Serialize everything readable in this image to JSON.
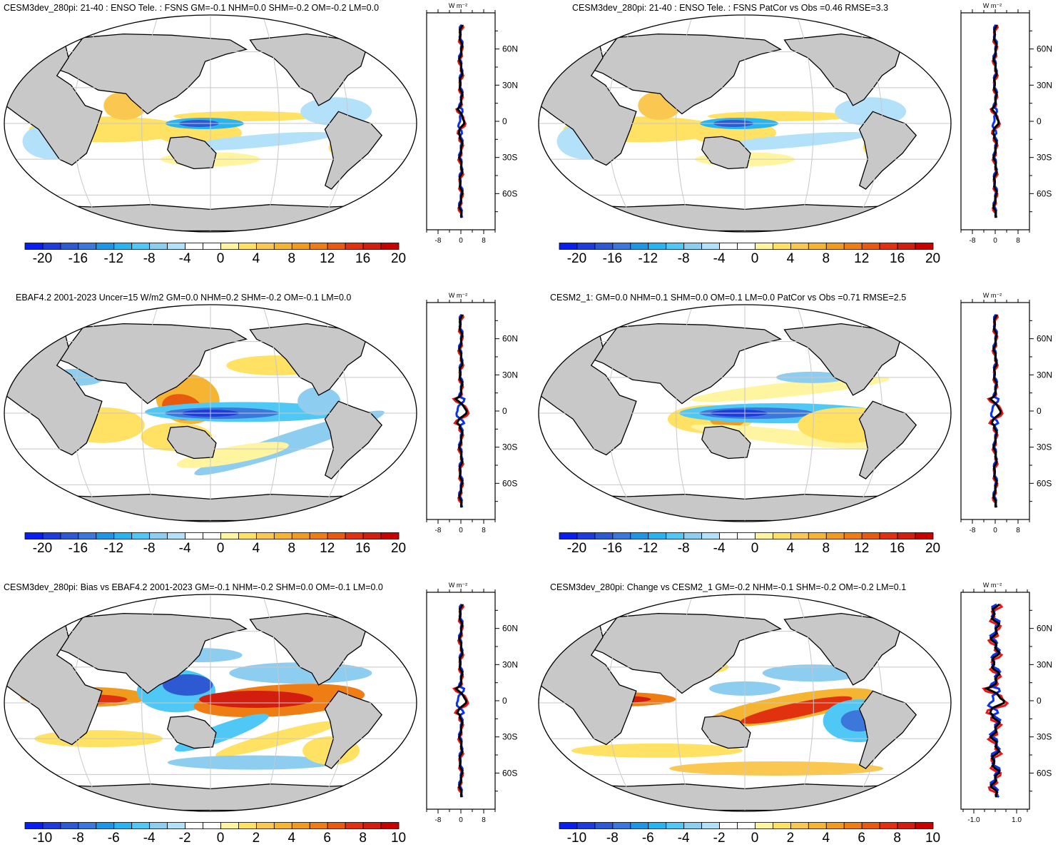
{
  "figure": {
    "profile_unit": "W m⁻²",
    "lat_labels": [
      "60N",
      "30N",
      "0",
      "30S",
      "60S"
    ],
    "lat_values": [
      60,
      30,
      0,
      -30,
      -60
    ]
  },
  "panels": [
    {
      "id": "p1",
      "title": "CESM3dev_280pi: 21-40 : ENSO Tele. : FSNS GM=-0.1 NHM=0.0 SHM=-0.2 OM=-0.2 LM=0.0",
      "colorbar_labels": [
        "-20",
        "-16",
        "-12",
        "-8",
        "-4",
        "0",
        "4",
        "8",
        "12",
        "16",
        "20"
      ],
      "profile_ticks": [
        "-8",
        "0",
        "8"
      ]
    },
    {
      "id": "p2",
      "title": "CESM3dev_280pi: 21-40 : ENSO Tele. : FSNS PatCor vs Obs =0.46 RMSE=3.3",
      "colorbar_labels": [
        "-20",
        "-16",
        "-12",
        "-8",
        "-4",
        "0",
        "4",
        "8",
        "12",
        "16",
        "20"
      ],
      "profile_ticks": [
        "-8",
        "0",
        "8"
      ]
    },
    {
      "id": "p3",
      "title": "EBAF4.2 2001-2023 Uncer=15 W/m2 GM=0.0 NHM=0.2 SHM=-0.2 OM=-0.1 LM=0.0",
      "colorbar_labels": [
        "-20",
        "-16",
        "-12",
        "-8",
        "-4",
        "0",
        "4",
        "8",
        "12",
        "16",
        "20"
      ],
      "profile_ticks": [
        "-8",
        "0",
        "8"
      ]
    },
    {
      "id": "p4",
      "title": "CESM2_1: GM=0.0 NHM=0.1 SHM=0.0 OM=0.1 LM=0.0 PatCor vs Obs =0.71 RMSE=2.5",
      "colorbar_labels": [
        "-20",
        "-16",
        "-12",
        "-8",
        "-4",
        "0",
        "4",
        "8",
        "12",
        "16",
        "20"
      ],
      "profile_ticks": [
        "-8",
        "0",
        "8"
      ]
    },
    {
      "id": "p5",
      "title": "CESM3dev_280pi: Bias vs EBAF4.2 2001-2023 GM=-0.1 NHM=-0.2 SHM=0.0 OM=-0.1 LM=0.0",
      "colorbar_labels": [
        "-10",
        "-8",
        "-6",
        "-4",
        "-2",
        "0",
        "2",
        "4",
        "6",
        "8",
        "10"
      ],
      "profile_ticks": [
        "-8",
        "0",
        "8"
      ]
    },
    {
      "id": "p6",
      "title": "CESM3dev_280pi: Change vs CESM2_1 GM=-0.2 NHM=-0.1 SHM=-0.2 OM=-0.2 LM=0.1",
      "colorbar_labels": [
        "-10",
        "-8",
        "-6",
        "-4",
        "-2",
        "0",
        "2",
        "4",
        "6",
        "8",
        "10"
      ],
      "profile_ticks": [
        "-1.0",
        "1.0"
      ]
    }
  ],
  "colors": {
    "colorbar": [
      "#0a1ef0",
      "#1e3cdc",
      "#2d5ad2",
      "#3c78dc",
      "#1e96e6",
      "#28b4f0",
      "#50c8f5",
      "#8ccdf0",
      "#b4e1fa",
      "#ffffff",
      "#ffffff",
      "#fff5a0",
      "#ffe164",
      "#fac850",
      "#f5b432",
      "#f09b1e",
      "#ee7d14",
      "#e85a0f",
      "#e1320f",
      "#d21e0f",
      "#c80000"
    ],
    "land": "#c8c8c8",
    "grid": "#c8c8c8",
    "line_model": "#000000",
    "line_obs": "#0a32f0",
    "line_other": "#f01414"
  },
  "chart_data": [
    {
      "type": "heatmap",
      "panel": "p1",
      "subject": "ENSO teleconnection FSNS regression map",
      "projection": "Robinson",
      "units": "W m-2",
      "levels": [
        -20,
        20
      ],
      "features": [
        {
          "region": "Western equatorial Pacific",
          "value": -14
        },
        {
          "region": "Maritime continent / Indian Ocean",
          "value": 4
        },
        {
          "region": "Central equatorial Pacific band",
          "value": 4
        },
        {
          "region": "South Pacific",
          "value": -4
        }
      ],
      "profile": {
        "type": "line",
        "x_range": [
          -12,
          12
        ],
        "y_range": [
          -90,
          90
        ]
      }
    },
    {
      "type": "heatmap",
      "panel": "p2",
      "subject": "ENSO teleconnection FSNS regression map",
      "projection": "Robinson",
      "units": "W m-2",
      "levels": [
        -20,
        20
      ],
      "features": [
        {
          "region": "Western equatorial Pacific",
          "value": -14
        },
        {
          "region": "Maritime continent / Indian Ocean",
          "value": 4
        },
        {
          "region": "South Pacific",
          "value": -4
        }
      ],
      "profile": {
        "type": "line",
        "x_range": [
          -12,
          12
        ],
        "y_range": [
          -90,
          90
        ]
      }
    },
    {
      "type": "heatmap",
      "panel": "p3",
      "subject": "Observed ENSO FSNS regression",
      "projection": "Robinson",
      "units": "W m-2",
      "levels": [
        -20,
        20
      ],
      "features": [
        {
          "region": "Central equatorial Pacific",
          "value": -18
        },
        {
          "region": "Maritime continent",
          "value": 12
        },
        {
          "region": "Southeast Pacific diagonal band",
          "value": -6
        }
      ],
      "profile": {
        "type": "line",
        "x_range": [
          -12,
          12
        ],
        "y_range": [
          -90,
          90
        ]
      }
    },
    {
      "type": "heatmap",
      "panel": "p4",
      "subject": "CESM2_1 ENSO FSNS regression",
      "projection": "Robinson",
      "units": "W m-2",
      "levels": [
        -20,
        20
      ],
      "features": [
        {
          "region": "Central equatorial Pacific",
          "value": -16
        },
        {
          "region": "Subtropical Pacific bands",
          "value": 4
        },
        {
          "region": "Maritime continent",
          "value": 8
        }
      ],
      "profile": {
        "type": "line",
        "x_range": [
          -12,
          12
        ],
        "y_range": [
          -90,
          90
        ]
      }
    },
    {
      "type": "heatmap",
      "panel": "p5",
      "subject": "Bias vs EBAF4.2",
      "projection": "Robinson",
      "units": "W m-2",
      "levels": [
        -10,
        10
      ],
      "features": [
        {
          "region": "Central equatorial Pacific",
          "value": 10
        },
        {
          "region": "Western Pacific",
          "value": -8
        },
        {
          "region": "Indian Ocean equator",
          "value": 8
        }
      ],
      "profile": {
        "type": "line",
        "x_range": [
          -12,
          12
        ],
        "y_range": [
          -90,
          90
        ]
      }
    },
    {
      "type": "heatmap",
      "panel": "p6",
      "subject": "Change vs CESM2_1",
      "projection": "Robinson",
      "units": "W m-2",
      "levels": [
        -10,
        10
      ],
      "features": [
        {
          "region": "Central equatorial Pacific",
          "value": 8
        },
        {
          "region": "Indian Ocean equator",
          "value": 8
        },
        {
          "region": "Western Pacific",
          "value": -4
        }
      ],
      "profile": {
        "type": "line",
        "x_range": [
          -1.6,
          1.6
        ],
        "y_range": [
          -90,
          90
        ]
      }
    }
  ]
}
